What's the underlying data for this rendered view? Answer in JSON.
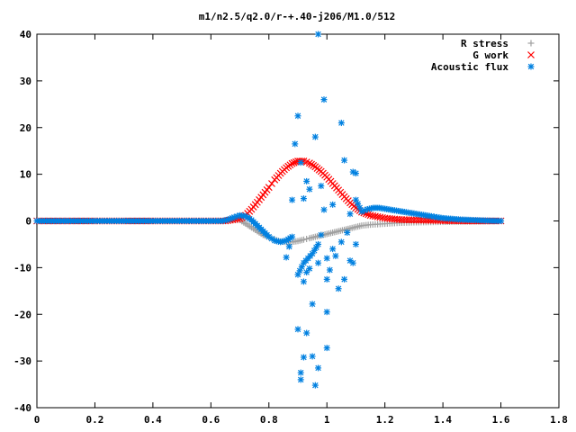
{
  "chart_data": {
    "type": "scatter",
    "title": "m1/n2.5/q2.0/r-+.40-j206/M1.0/512",
    "xlabel": "",
    "ylabel": "",
    "xlim": [
      0,
      1.8
    ],
    "ylim": [
      -40,
      40
    ],
    "grid": false,
    "legend_position": "top-right",
    "x_ticks": [
      "0",
      "0.2",
      "0.4",
      "0.6",
      "0.8",
      "1",
      "1.2",
      "1.4",
      "1.6",
      "1.8"
    ],
    "y_ticks": [
      "-40",
      "-30",
      "-20",
      "-10",
      "0",
      "10",
      "20",
      "30",
      "40"
    ],
    "series": [
      {
        "name": "R stress",
        "marker": "plus",
        "color": "#a0a0a0",
        "points": [
          [
            0.0,
            0
          ],
          [
            0.1,
            0
          ],
          [
            0.2,
            0
          ],
          [
            0.3,
            0
          ],
          [
            0.4,
            0
          ],
          [
            0.5,
            0
          ],
          [
            0.6,
            0
          ],
          [
            0.65,
            0
          ],
          [
            0.68,
            0.3
          ],
          [
            0.7,
            0.2
          ],
          [
            0.72,
            -0.6
          ],
          [
            0.74,
            -1.4
          ],
          [
            0.76,
            -2.2
          ],
          [
            0.78,
            -3.0
          ],
          [
            0.8,
            -3.5
          ],
          [
            0.82,
            -4.0
          ],
          [
            0.84,
            -4.4
          ],
          [
            0.86,
            -4.5
          ],
          [
            0.88,
            -4.5
          ],
          [
            0.9,
            -4.3
          ],
          [
            0.92,
            -4.0
          ],
          [
            0.94,
            -3.7
          ],
          [
            0.96,
            -3.4
          ],
          [
            0.98,
            -3.1
          ],
          [
            1.0,
            -2.8
          ],
          [
            1.02,
            -2.5
          ],
          [
            1.04,
            -2.2
          ],
          [
            1.06,
            -1.9
          ],
          [
            1.08,
            -1.6
          ],
          [
            1.1,
            -1.3
          ],
          [
            1.12,
            -1.0
          ],
          [
            1.15,
            -0.8
          ],
          [
            1.2,
            -0.6
          ],
          [
            1.25,
            -0.4
          ],
          [
            1.3,
            -0.3
          ],
          [
            1.4,
            -0.2
          ],
          [
            1.5,
            -0.1
          ],
          [
            1.6,
            0
          ]
        ]
      },
      {
        "name": "G work",
        "marker": "cross",
        "color": "#ff0000",
        "points": [
          [
            0.0,
            0
          ],
          [
            0.1,
            0
          ],
          [
            0.2,
            0
          ],
          [
            0.3,
            0
          ],
          [
            0.4,
            0
          ],
          [
            0.5,
            0
          ],
          [
            0.6,
            0
          ],
          [
            0.65,
            0
          ],
          [
            0.7,
            0.5
          ],
          [
            0.72,
            1.2
          ],
          [
            0.74,
            2.5
          ],
          [
            0.76,
            4.0
          ],
          [
            0.78,
            5.6
          ],
          [
            0.8,
            7.2
          ],
          [
            0.82,
            8.8
          ],
          [
            0.84,
            10.2
          ],
          [
            0.86,
            11.4
          ],
          [
            0.88,
            12.3
          ],
          [
            0.9,
            12.8
          ],
          [
            0.92,
            12.8
          ],
          [
            0.94,
            12.4
          ],
          [
            0.96,
            11.6
          ],
          [
            0.98,
            10.6
          ],
          [
            1.0,
            9.4
          ],
          [
            1.02,
            8.0
          ],
          [
            1.04,
            6.6
          ],
          [
            1.06,
            5.2
          ],
          [
            1.08,
            3.9
          ],
          [
            1.1,
            2.8
          ],
          [
            1.12,
            1.9
          ],
          [
            1.15,
            1.2
          ],
          [
            1.2,
            0.6
          ],
          [
            1.25,
            0.3
          ],
          [
            1.3,
            0.2
          ],
          [
            1.4,
            0.1
          ],
          [
            1.5,
            0
          ],
          [
            1.6,
            0
          ]
        ]
      },
      {
        "name": "Acoustic flux",
        "marker": "star",
        "color": "#0080e0",
        "points": [
          [
            0.0,
            0
          ],
          [
            0.05,
            0
          ],
          [
            0.1,
            0
          ],
          [
            0.15,
            0
          ],
          [
            0.2,
            0
          ],
          [
            0.25,
            0
          ],
          [
            0.3,
            0
          ],
          [
            0.35,
            0
          ],
          [
            0.4,
            0
          ],
          [
            0.45,
            0
          ],
          [
            0.5,
            0
          ],
          [
            0.55,
            0
          ],
          [
            0.6,
            0
          ],
          [
            0.64,
            0
          ],
          [
            0.66,
            0.3
          ],
          [
            0.68,
            0.8
          ],
          [
            0.7,
            1.2
          ],
          [
            0.72,
            1.0
          ],
          [
            0.74,
            0.2
          ],
          [
            0.76,
            -1.0
          ],
          [
            0.78,
            -2.2
          ],
          [
            0.8,
            -3.4
          ],
          [
            0.82,
            -4.2
          ],
          [
            0.84,
            -4.5
          ],
          [
            0.86,
            -4.2
          ],
          [
            0.88,
            -3.4
          ],
          [
            0.89,
            16.5
          ],
          [
            0.9,
            22.5
          ],
          [
            0.9,
            -23.2
          ],
          [
            0.91,
            -32.5
          ],
          [
            0.91,
            -34.0
          ],
          [
            0.92,
            -29.2
          ],
          [
            0.92,
            -13.0
          ],
          [
            0.93,
            -11.0
          ],
          [
            0.93,
            -24.0
          ],
          [
            0.94,
            -10.2
          ],
          [
            0.95,
            -29.0
          ],
          [
            0.95,
            -17.8
          ],
          [
            0.96,
            18.0
          ],
          [
            0.96,
            -35.2
          ],
          [
            0.97,
            40.0
          ],
          [
            0.97,
            -31.5
          ],
          [
            0.97,
            -9.0
          ],
          [
            0.98,
            7.5
          ],
          [
            0.99,
            26.0
          ],
          [
            1.0,
            -27.2
          ],
          [
            1.0,
            -19.5
          ],
          [
            1.0,
            -12.5
          ],
          [
            0.92,
            4.8
          ],
          [
            0.91,
            12.5
          ],
          [
            0.93,
            8.5
          ],
          [
            0.94,
            6.8
          ],
          [
            0.88,
            4.5
          ],
          [
            0.87,
            -5.5
          ],
          [
            0.86,
            -7.8
          ],
          [
            0.9,
            -11.5
          ],
          [
            0.92,
            -9.0
          ],
          [
            0.95,
            -7.0
          ],
          [
            0.97,
            -5.0
          ],
          [
            0.98,
            -3.0
          ],
          [
            0.99,
            2.4
          ],
          [
            1.0,
            -8.0
          ],
          [
            1.01,
            -10.5
          ],
          [
            1.02,
            -6.0
          ],
          [
            1.02,
            3.5
          ],
          [
            1.03,
            -7.5
          ],
          [
            1.04,
            -14.5
          ],
          [
            1.05,
            21.0
          ],
          [
            1.05,
            -4.5
          ],
          [
            1.06,
            -12.5
          ],
          [
            1.06,
            13.0
          ],
          [
            1.07,
            -2.5
          ],
          [
            1.08,
            -8.5
          ],
          [
            1.08,
            1.5
          ],
          [
            1.09,
            -9.0
          ],
          [
            1.09,
            10.5
          ],
          [
            1.1,
            10.2
          ],
          [
            1.1,
            -5.0
          ],
          [
            1.1,
            4.5
          ],
          [
            1.12,
            2.0
          ],
          [
            1.14,
            2.5
          ],
          [
            1.16,
            2.8
          ],
          [
            1.18,
            2.8
          ],
          [
            1.2,
            2.6
          ],
          [
            1.22,
            2.4
          ],
          [
            1.24,
            2.2
          ],
          [
            1.26,
            2.0
          ],
          [
            1.28,
            1.8
          ],
          [
            1.3,
            1.6
          ],
          [
            1.32,
            1.4
          ],
          [
            1.34,
            1.2
          ],
          [
            1.36,
            1.0
          ],
          [
            1.38,
            0.8
          ],
          [
            1.4,
            0.6
          ],
          [
            1.42,
            0.5
          ],
          [
            1.44,
            0.4
          ],
          [
            1.46,
            0.3
          ],
          [
            1.48,
            0.25
          ],
          [
            1.5,
            0.2
          ],
          [
            1.52,
            0.15
          ],
          [
            1.54,
            0.1
          ],
          [
            1.56,
            0.05
          ],
          [
            1.58,
            0.02
          ],
          [
            1.6,
            0
          ]
        ]
      }
    ]
  }
}
